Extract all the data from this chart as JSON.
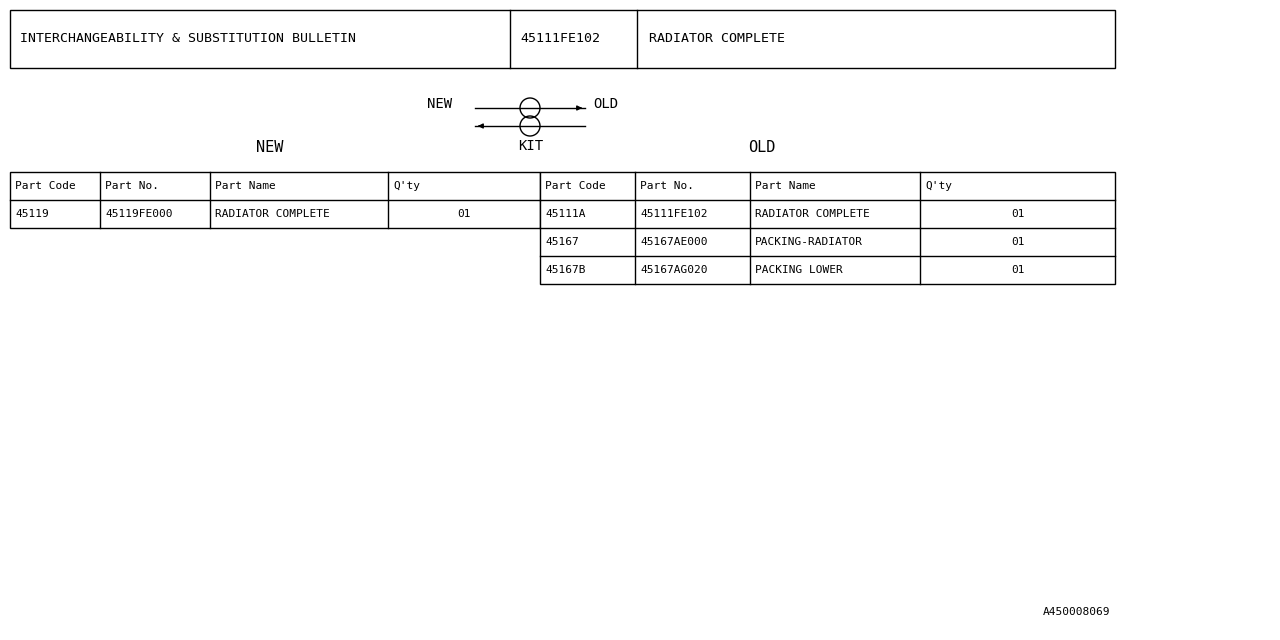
{
  "bg_color": "#ffffff",
  "text_color": "#000000",
  "font_family": "monospace",
  "header_row": {
    "col1": "INTERCHANGEABILITY & SUBSTITUTION BULLETIN",
    "col2": "45111FE102",
    "col3": "RADIATOR COMPLETE"
  },
  "new_label": "NEW",
  "old_label": "OLD",
  "kit_label": "KIT",
  "new_table_headers": [
    "Part Code",
    "Part No.",
    "Part Name",
    "Q'ty"
  ],
  "old_table_headers": [
    "Part Code",
    "Part No.",
    "Part Name",
    "Q'ty"
  ],
  "new_rows": [
    [
      "45119",
      "45119FE000",
      "RADIATOR COMPLETE",
      "01"
    ]
  ],
  "old_rows": [
    [
      "45111A",
      "45111FE102",
      "RADIATOR COMPLETE",
      "01"
    ],
    [
      "45167",
      "45167AE000",
      "PACKING-RADIATOR",
      "01"
    ],
    [
      "45167B",
      "45167AG020",
      "PACKING LOWER",
      "01"
    ]
  ],
  "footer_code": "A450008069",
  "fig_w": 12.8,
  "fig_h": 6.4,
  "dpi": 100
}
